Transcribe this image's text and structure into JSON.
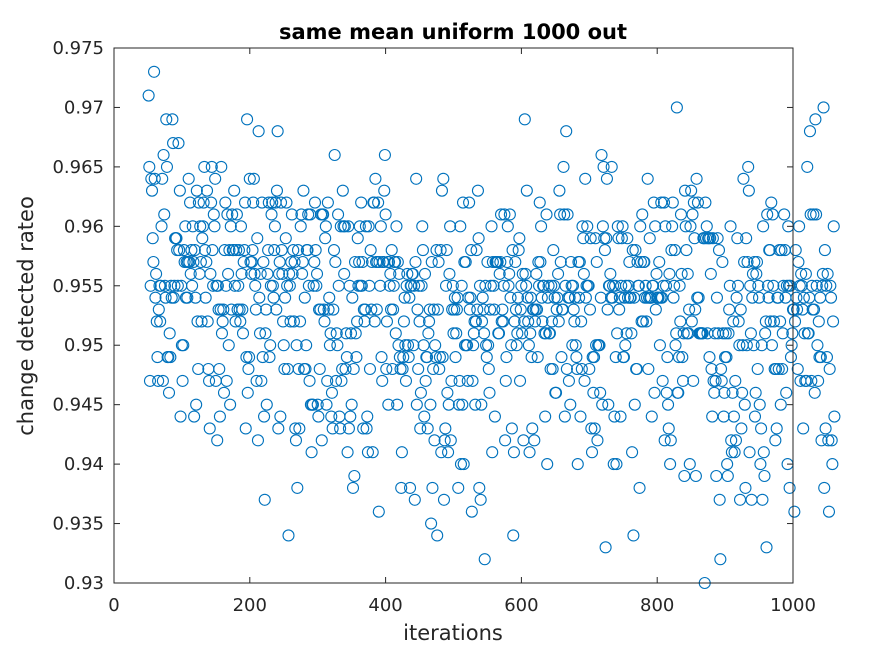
{
  "chart_data": {
    "type": "scatter",
    "title": "same mean uniform 1000 out",
    "xlabel": "iterations",
    "ylabel": "change detected rateo",
    "xlim": [
      0,
      1000
    ],
    "ylim": [
      0.93,
      0.975
    ],
    "xticks": [
      0,
      200,
      400,
      600,
      800,
      1000
    ],
    "xtick_labels": [
      "0",
      "200",
      "400",
      "600",
      "800",
      "1000"
    ],
    "yticks": [
      0.93,
      0.935,
      0.94,
      0.945,
      0.95,
      0.955,
      0.96,
      0.965,
      0.97,
      0.975
    ],
    "ytick_labels": [
      "0.93",
      "0.935",
      "0.94",
      "0.945",
      "0.95",
      "0.955",
      "0.96",
      "0.965",
      "0.97",
      "0.975"
    ],
    "grid": false,
    "marker": "circle-open",
    "color": "#0072BD",
    "x_start": 51,
    "y": [
      0.971,
      0.965,
      0.947,
      0.955,
      0.964,
      0.963,
      0.959,
      0.957,
      0.973,
      0.964,
      0.954,
      0.956,
      0.952,
      0.949,
      0.947,
      0.953,
      0.955,
      0.952,
      0.955,
      0.96,
      0.964,
      0.947,
      0.966,
      0.961,
      0.955,
      0.954,
      0.969,
      0.965,
      0.949,
      0.949,
      0.946,
      0.951,
      0.949,
      0.955,
      0.954,
      0.969,
      0.967,
      0.954,
      0.955,
      0.959,
      0.959,
      0.959,
      0.958,
      0.955,
      0.967,
      0.958,
      0.963,
      0.944,
      0.955,
      0.95,
      0.947,
      0.95,
      0.958,
      0.957,
      0.96,
      0.954,
      0.957,
      0.954,
      0.957,
      0.964,
      0.957,
      0.962,
      0.956,
      0.958,
      0.955,
      0.96,
      0.957,
      0.944,
      0.958,
      0.954,
      0.945,
      0.963,
      0.952,
      0.948,
      0.962,
      0.956,
      0.96,
      0.957,
      0.952,
      0.959,
      0.96,
      0.962,
      0.965,
      0.958,
      0.954,
      0.957,
      0.963,
      0.952,
      0.948,
      0.947,
      0.943,
      0.956,
      0.962,
      0.965,
      0.958,
      0.955,
      0.961,
      0.96,
      0.964,
      0.947,
      0.955,
      0.942,
      0.955,
      0.953,
      0.948,
      0.944,
      0.953,
      0.965,
      0.951,
      0.952,
      0.953,
      0.946,
      0.958,
      0.962,
      0.955,
      0.947,
      0.961,
      0.956,
      0.95,
      0.958,
      0.945,
      0.96,
      0.953,
      0.961,
      0.958,
      0.958,
      0.963,
      0.955,
      0.952,
      0.958,
      0.961,
      0.953,
      0.955,
      0.958,
      0.953,
      0.952,
      0.96,
      0.956,
      0.953,
      0.951,
      0.957,
      0.958,
      0.962,
      0.943,
      0.949,
      0.969,
      0.946,
      0.948,
      0.949,
      0.964,
      0.957,
      0.956,
      0.957,
      0.958,
      0.962,
      0.964,
      0.956,
      0.955,
      0.953,
      0.947,
      0.959,
      0.942,
      0.968,
      0.954,
      0.951,
      0.956,
      0.947,
      0.962,
      0.949,
      0.957,
      0.944,
      0.937,
      0.951,
      0.953,
      0.945,
      0.956,
      0.958,
      0.962,
      0.949,
      0.95,
      0.955,
      0.961,
      0.962,
      0.955,
      0.954,
      0.958,
      0.96,
      0.962,
      0.953,
      0.963,
      0.968,
      0.943,
      0.956,
      0.957,
      0.944,
      0.962,
      0.958,
      0.956,
      0.952,
      0.95,
      0.948,
      0.954,
      0.959,
      0.962,
      0.955,
      0.948,
      0.934,
      0.956,
      0.955,
      0.952,
      0.957,
      0.961,
      0.956,
      0.958,
      0.952,
      0.957,
      0.943,
      0.942,
      0.95,
      0.938,
      0.958,
      0.948,
      0.943,
      0.952,
      0.96,
      0.961,
      0.956,
      0.957,
      0.963,
      0.948,
      0.954,
      0.948,
      0.95,
      0.958,
      0.958,
      0.961,
      0.955,
      0.947,
      0.961,
      0.945,
      0.941,
      0.945,
      0.945,
      0.955,
      0.957,
      0.962,
      0.958,
      0.955,
      0.956,
      0.945,
      0.944,
      0.953,
      0.948,
      0.953,
      0.961,
      0.942,
      0.961,
      0.961,
      0.953,
      0.952,
      0.959,
      0.96,
      0.945,
      0.947,
      0.962,
      0.953,
      0.954,
      0.95,
      0.951,
      0.944,
      0.946,
      0.943,
      0.953,
      0.958,
      0.966,
      0.957,
      0.947,
      0.951,
      0.95,
      0.961,
      0.955,
      0.944,
      0.943,
      0.96,
      0.947,
      0.948,
      0.963,
      0.96,
      0.956,
      0.96,
      0.948,
      0.951,
      0.949,
      0.941,
      0.96,
      0.943,
      0.955,
      0.944,
      0.951,
      0.945,
      0.954,
      0.938,
      0.948,
      0.939,
      0.957,
      0.951,
      0.949,
      0.952,
      0.959,
      0.955,
      0.957,
      0.96,
      0.955,
      0.962,
      0.955,
      0.957,
      0.943,
      0.953,
      0.952,
      0.953,
      0.96,
      0.943,
      0.944,
      0.941,
      0.96,
      0.955,
      0.948,
      0.958,
      0.953,
      0.957,
      0.941,
      0.962,
      0.962,
      0.952,
      0.964,
      0.957,
      0.953,
      0.957,
      0.962,
      0.936,
      0.957,
      0.955,
      0.96,
      0.949,
      0.947,
      0.957,
      0.957,
      0.963,
      0.966,
      0.961,
      0.948,
      0.952,
      0.957,
      0.945,
      0.957,
      0.955,
      0.956,
      0.953,
      0.958,
      0.948,
      0.953,
      0.955,
      0.957,
      0.957,
      0.951,
      0.96,
      0.945,
      0.957,
      0.95,
      0.956,
      0.949,
      0.948,
      0.938,
      0.941,
      0.948,
      0.949,
      0.952,
      0.954,
      0.95,
      0.947,
      0.955,
      0.956,
      0.95,
      0.949,
      0.954,
      0.938,
      0.955,
      0.955,
      0.956,
      0.956,
      0.95,
      0.955,
      0.937,
      0.957,
      0.964,
      0.945,
      0.953,
      0.948,
      0.955,
      0.952,
      0.943,
      0.946,
      0.955,
      0.96,
      0.958,
      0.95,
      0.944,
      0.956,
      0.947,
      0.949,
      0.949,
      0.943,
      0.951,
      0.952,
      0.953,
      0.945,
      0.935,
      0.957,
      0.938,
      0.948,
      0.953,
      0.942,
      0.95,
      0.949,
      0.958,
      0.934,
      0.953,
      0.957,
      0.948,
      0.949,
      0.958,
      0.941,
      0.963,
      0.949,
      0.964,
      0.937,
      0.942,
      0.943,
      0.955,
      0.958,
      0.946,
      0.941,
      0.945,
      0.956,
      0.96,
      0.942,
      0.947,
      0.953,
      0.955,
      0.951,
      0.953,
      0.954,
      0.949,
      0.951,
      0.953,
      0.954,
      0.938,
      0.945,
      0.947,
      0.96,
      0.94,
      0.955,
      0.945,
      0.962,
      0.94,
      0.957,
      0.95,
      0.957,
      0.95,
      0.95,
      0.947,
      0.954,
      0.962,
      0.953,
      0.954,
      0.958,
      0.936,
      0.947,
      0.95,
      0.951,
      0.952,
      0.945,
      0.952,
      0.958,
      0.953,
      0.963,
      0.959,
      0.938,
      0.955,
      0.937,
      0.945,
      0.952,
      0.954,
      0.953,
      0.951,
      0.932,
      0.955,
      0.95,
      0.949,
      0.957,
      0.95,
      0.948,
      0.946,
      0.953,
      0.955,
      0.96,
      0.941,
      0.957,
      0.955,
      0.953,
      0.944,
      0.957,
      0.957,
      0.957,
      0.957,
      0.951,
      0.951,
      0.956,
      0.957,
      0.961,
      0.952,
      0.953,
      0.952,
      0.955,
      0.961,
      0.942,
      0.947,
      0.949,
      0.957,
      0.96,
      0.955,
      0.956,
      0.961,
      0.954,
      0.95,
      0.943,
      0.958,
      0.934,
      0.941,
      0.952,
      0.957,
      0.953,
      0.95,
      0.951,
      0.954,
      0.958,
      0.959,
      0.947,
      0.953,
      0.955,
      0.951,
      0.956,
      0.942,
      0.952,
      0.969,
      0.956,
      0.955,
      0.963,
      0.954,
      0.952,
      0.95,
      0.941,
      0.951,
      0.954,
      0.949,
      0.943,
      0.953,
      0.953,
      0.942,
      0.952,
      0.953,
      0.956,
      0.953,
      0.949,
      0.957,
      0.955,
      0.962,
      0.957,
      0.96,
      0.954,
      0.952,
      0.955,
      0.955,
      0.951,
      0.944,
      0.951,
      0.961,
      0.94,
      0.954,
      0.955,
      0.951,
      0.951,
      0.948,
      0.955,
      0.952,
      0.948,
      0.958,
      0.955,
      0.954,
      0.946,
      0.946,
      0.953,
      0.954,
      0.956,
      0.952,
      0.963,
      0.961,
      0.957,
      0.949,
      0.953,
      0.953,
      0.965,
      0.961,
      0.944,
      0.955,
      0.968,
      0.948,
      0.961,
      0.954,
      0.947,
      0.954,
      0.945,
      0.957,
      0.955,
      0.95,
      0.955,
      0.953,
      0.952,
      0.954,
      0.95,
      0.949,
      0.948,
      0.94,
      0.957,
      0.954,
      0.957,
      0.944,
      0.952,
      0.948,
      0.96,
      0.959,
      0.956,
      0.947,
      0.964,
      0.954,
      0.955,
      0.96,
      0.955,
      0.955,
      0.948,
      0.953,
      0.959,
      0.943,
      0.941,
      0.949,
      0.946,
      0.949,
      0.943,
      0.959,
      0.95,
      0.957,
      0.942,
      0.95,
      0.95,
      0.95,
      0.946,
      0.954,
      0.966,
      0.945,
      0.96,
      0.965,
      0.959,
      0.958,
      0.933,
      0.959,
      0.964,
      0.953,
      0.945,
      0.955,
      0.955,
      0.956,
      0.954,
      0.965,
      0.954,
      0.955,
      0.94,
      0.944,
      0.955,
      0.949,
      0.94,
      0.951,
      0.96,
      0.959,
      0.953,
      0.954,
      0.944,
      0.955,
      0.959,
      0.96,
      0.949,
      0.949,
      0.954,
      0.95,
      0.955,
      0.951,
      0.959,
      0.954,
      0.955,
      0.957,
      0.954,
      0.954,
      0.951,
      0.941,
      0.958,
      0.934,
      0.954,
      0.945,
      0.958,
      0.948,
      0.948,
      0.957,
      0.955,
      0.955,
      0.938,
      0.96,
      0.957,
      0.952,
      0.961,
      0.952,
      0.957,
      0.957,
      0.954,
      0.955,
      0.952,
      0.954,
      0.964,
      0.948,
      0.954,
      0.959,
      0.954,
      0.954,
      0.944,
      0.955,
      0.955,
      0.962,
      0.946,
      0.96,
      0.953,
      0.956,
      0.954,
      0.954,
      0.954,
      0.957,
      0.95,
      0.954,
      0.962,
      0.954,
      0.947,
      0.955,
      0.962,
      0.942,
      0.96,
      0.955,
      0.946,
      0.949,
      0.945,
      0.943,
      0.956,
      0.94,
      0.942,
      0.958,
      0.96,
      0.962,
      0.954,
      0.955,
      0.958,
      0.95,
      0.951,
      0.97,
      0.946,
      0.946,
      0.949,
      0.955,
      0.952,
      0.961,
      0.956,
      0.949,
      0.947,
      0.951,
      0.939,
      0.963,
      0.96,
      0.958,
      0.951,
      0.956,
      0.951,
      0.953,
      0.94,
      0.96,
      0.963,
      0.952,
      0.961,
      0.947,
      0.962,
      0.959,
      0.953,
      0.939,
      0.964,
      0.954,
      0.962,
      0.954,
      0.951,
      0.951,
      0.951,
      0.951,
      0.951,
      0.951,
      0.959,
      0.959,
      0.93,
      0.962,
      0.959,
      0.96,
      0.951,
      0.959,
      0.959,
      0.949,
      0.959,
      0.956,
      0.948,
      0.944,
      0.959,
      0.947,
      0.946,
      0.951,
      0.947,
      0.939,
      0.954,
      0.959,
      0.951,
      0.958,
      0.937,
      0.932,
      0.948,
      0.947,
      0.957,
      0.951,
      0.944,
      0.946,
      0.949,
      0.951,
      0.949,
      0.94,
      0.939,
      0.951,
      0.953,
      0.955,
      0.96,
      0.942,
      0.941,
      0.946,
      0.952,
      0.944,
      0.941,
      0.947,
      0.942,
      0.954,
      0.959,
      0.955,
      0.952,
      0.95,
      0.937,
      0.953,
      0.943,
      0.946,
      0.95,
      0.964,
      0.957,
      0.945,
      0.938,
      0.959,
      0.95,
      0.957,
      0.965,
      0.963,
      0.941,
      0.955,
      0.951,
      0.937,
      0.954,
      0.956,
      0.95,
      0.957,
      0.944,
      0.946,
      0.956,
      0.957,
      0.948,
      0.955,
      0.954,
      0.945,
      0.94,
      0.943,
      0.95,
      0.937,
      0.96,
      0.941,
      0.939,
      0.951,
      0.952,
      0.933,
      0.961,
      0.955,
      0.954,
      0.958,
      0.958,
      0.952,
      0.962,
      0.95,
      0.961,
      0.955,
      0.952,
      0.948,
      0.942,
      0.948,
      0.943,
      0.954,
      0.954,
      0.948,
      0.958,
      0.952,
      0.945,
      0.958,
      0.948,
      0.951,
      0.955,
      0.961,
      0.958,
      0.954,
      0.946,
      0.955,
      0.94,
      0.96,
      0.955,
      0.938,
      0.955,
      0.949,
      0.95,
      0.951,
      0.953,
      0.953,
      0.936,
      0.952,
      0.958,
      0.954,
      0.953,
      0.948,
      0.957,
      0.96,
      0.955,
      0.947,
      0.956,
      0.955,
      0.953,
      0.943,
      0.954,
      0.951,
      0.947,
      0.956,
      0.947,
      0.965,
      0.951,
      0.951,
      0.954,
      0.968,
      0.961,
      0.947,
      0.955,
      0.953,
      0.961,
      0.953,
      0.946,
      0.969,
      0.961,
      0.955,
      0.95,
      0.947,
      0.952,
      0.949,
      0.954,
      0.949,
      0.942,
      0.955,
      0.956,
      0.97,
      0.938,
      0.958,
      0.943,
      0.955,
      0.949,
      0.956,
      0.942,
      0.936,
      0.948,
      0.955,
      0.954,
      0.942,
      0.94,
      0.952,
      0.96,
      0.944
    ]
  }
}
